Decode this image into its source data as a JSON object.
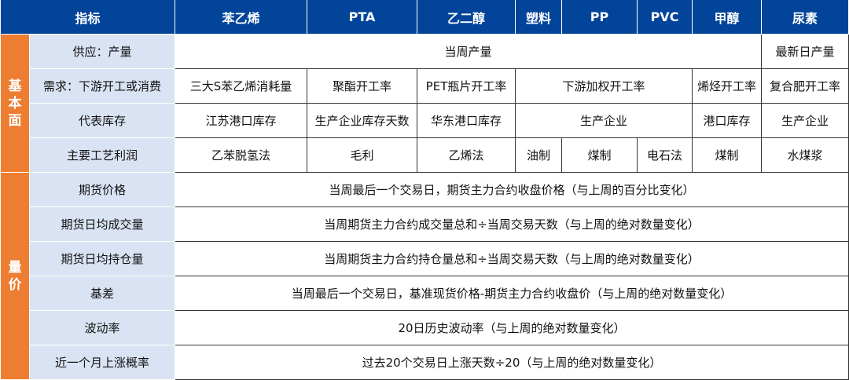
{
  "colors": {
    "header": "#01449a",
    "group": "#ed7d31",
    "label_bg": "#dae3f3"
  },
  "header": [
    {
      "text": "指标",
      "span": 2
    },
    {
      "text": "苯乙烯"
    },
    {
      "text": "PTA"
    },
    {
      "text": "乙二醇"
    },
    {
      "text": "塑料"
    },
    {
      "text": "PP"
    },
    {
      "text": "PVC"
    },
    {
      "text": "甲醇"
    },
    {
      "text": "尿素"
    }
  ],
  "groups": [
    {
      "title": "基本面",
      "rows": [
        {
          "label": "供应：产量",
          "cells": [
            {
              "text": "当周产量",
              "span": 7
            },
            {
              "text": "最新日产量"
            }
          ]
        },
        {
          "label": "需求：下游开工或消费",
          "cells": [
            {
              "text": "三大S苯乙烯消耗量"
            },
            {
              "text": "聚酯开工率"
            },
            {
              "text": "PET瓶片开工率"
            },
            {
              "text": "下游加权开工率",
              "span": 3
            },
            {
              "text": "烯烃开工率"
            },
            {
              "text": "复合肥开工率"
            }
          ]
        },
        {
          "label": "代表库存",
          "cells": [
            {
              "text": "江苏港口库存"
            },
            {
              "text": "生产企业库存天数"
            },
            {
              "text": "华东港口库存"
            },
            {
              "text": "生产企业",
              "span": 3
            },
            {
              "text": "港口库存"
            },
            {
              "text": "生产企业"
            }
          ]
        },
        {
          "label": "主要工艺利润",
          "cells": [
            {
              "text": "乙苯脱氢法"
            },
            {
              "text": "毛利"
            },
            {
              "text": "乙烯法"
            },
            {
              "text": "油制"
            },
            {
              "text": "煤制"
            },
            {
              "text": "电石法"
            },
            {
              "text": "煤制"
            },
            {
              "text": "水煤浆"
            }
          ]
        }
      ]
    },
    {
      "title": "量价",
      "rows": [
        {
          "label": "期货价格",
          "cells": [
            {
              "text": "当周最后一个交易日，期货主力合约收盘价格（与上周的百分比变化）",
              "span": 8
            }
          ]
        },
        {
          "label": "期货日均成交量",
          "cells": [
            {
              "text": "当周期货主力合约成交量总和÷当周交易天数（与上周的绝对数量变化）",
              "span": 8
            }
          ]
        },
        {
          "label": "期货日均持仓量",
          "cells": [
            {
              "text": "当周期货主力合约持仓量总和÷当周交易天数（与上周的绝对数量变化）",
              "span": 8
            }
          ]
        },
        {
          "label": "基差",
          "cells": [
            {
              "text": "当周最后一个交易日，基准现货价格-期货主力合约收盘价（与上周的绝对数量变化）",
              "span": 8
            }
          ]
        },
        {
          "label": "波动率",
          "cells": [
            {
              "text": "20日历史波动率（与上周的绝对数量变化）",
              "span": 8
            }
          ]
        },
        {
          "label": "近一个月上涨概率",
          "cells": [
            {
              "text": "过去20个交易日上涨天数÷20（与上周的绝对数量变化）",
              "span": 8
            }
          ]
        }
      ]
    }
  ]
}
